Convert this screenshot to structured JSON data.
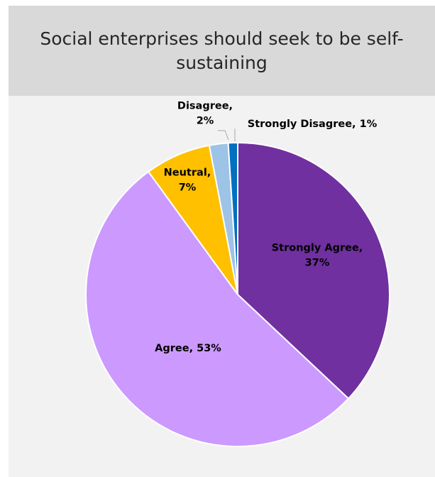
{
  "chart_data": {
    "type": "pie",
    "title": "Social enterprises should seek to be self-\nsustaining",
    "slices": [
      {
        "label": "Strongly Agree, 37%",
        "label_lines": [
          "Strongly Agree,",
          "37%"
        ],
        "value": 37,
        "color": "#7030a0"
      },
      {
        "label": "Agree, 53%",
        "label_lines": [
          "Agree, 53%"
        ],
        "value": 53,
        "color": "#cc99ff"
      },
      {
        "label": "Neutral, 7%",
        "label_lines": [
          "Neutral,",
          "7%"
        ],
        "value": 7,
        "color": "#ffc000"
      },
      {
        "label": "Disagree, 2%",
        "label_lines": [
          "Disagree,",
          "2%"
        ],
        "value": 2,
        "color": "#9dc3e6"
      },
      {
        "label": "Strongly Disagree, 1%",
        "label_lines": [
          "Strongly Disagree, 1%"
        ],
        "value": 1,
        "color": "#0070c0"
      }
    ],
    "legend": "none",
    "data_labels": "category and percentage"
  }
}
